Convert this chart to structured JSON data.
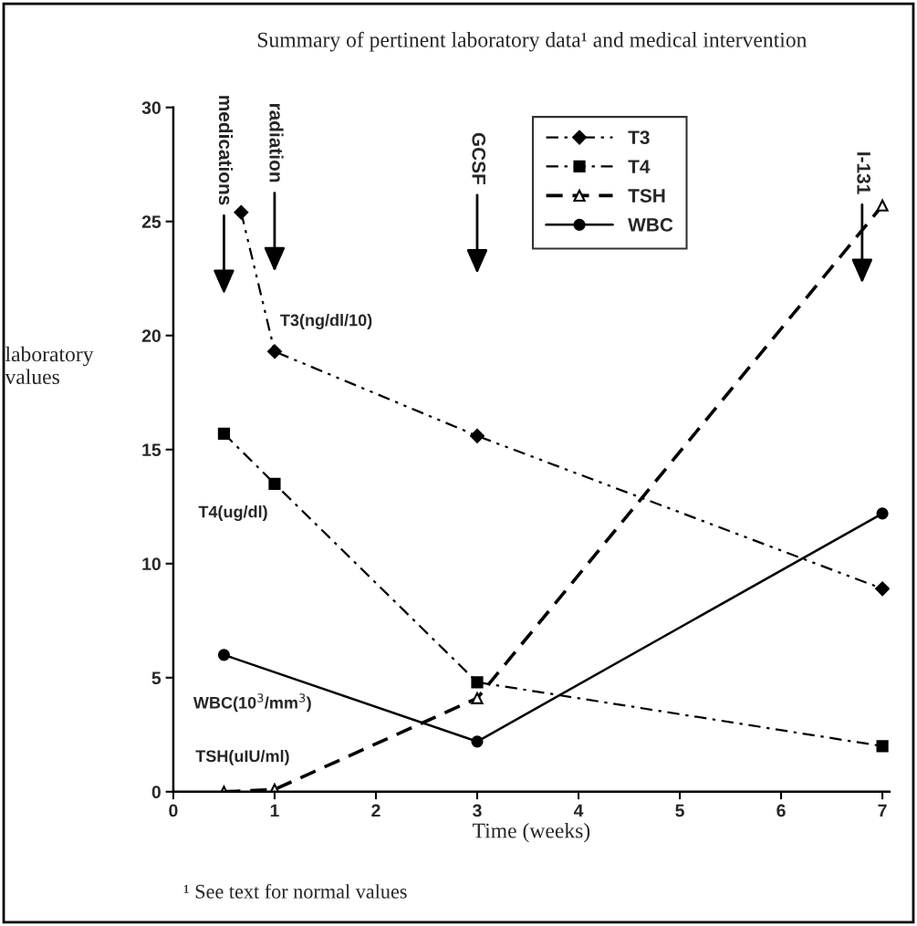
{
  "chart_data": {
    "type": "line",
    "title": "Summary of pertinent laboratory data¹ and medical intervention",
    "xlabel": "Time (weeks)",
    "ylabel": "laboratory\nvalues",
    "xlim": [
      0,
      7.07
    ],
    "ylim": [
      0,
      30
    ],
    "xticks": [
      0,
      1,
      2,
      3,
      4,
      5,
      6,
      7
    ],
    "yticks": [
      0,
      5,
      10,
      15,
      20,
      25,
      30
    ],
    "grid": false,
    "legend": "top right",
    "series": [
      {
        "name": "T3",
        "color": "#000000",
        "x": [
          0.67,
          1,
          3,
          7
        ],
        "values": [
          25.4,
          19.3,
          15.6,
          8.9
        ],
        "marker": "diamond",
        "line_style": "dashdotdot"
      },
      {
        "name": "T4",
        "color": "#000000",
        "x": [
          0.5,
          1,
          3,
          7
        ],
        "values": [
          15.7,
          13.5,
          4.8,
          2.0
        ],
        "marker": "square",
        "line_style": "dashdot"
      },
      {
        "name": "TSH",
        "color": "#000000",
        "x": [
          0.5,
          1,
          3,
          7
        ],
        "values": [
          0,
          0.1,
          4.1,
          25.7
        ],
        "marker": "triangle",
        "line_style": "dashed"
      },
      {
        "name": "WBC",
        "color": "#000000",
        "x": [
          0.5,
          3,
          7
        ],
        "values": [
          6.0,
          2.2,
          12.2
        ],
        "marker": "circle",
        "line_style": "solid"
      }
    ],
    "annotations": [
      "medications",
      "radiation",
      "GCSF",
      "I-131",
      "T3(ng/dl/10)",
      "T4(ug/dl)",
      "WBC(10$^{3}$/mm$^{3}$)",
      "TSH(uIU/ml)",
      "¹ See text for normal values"
    ]
  }
}
